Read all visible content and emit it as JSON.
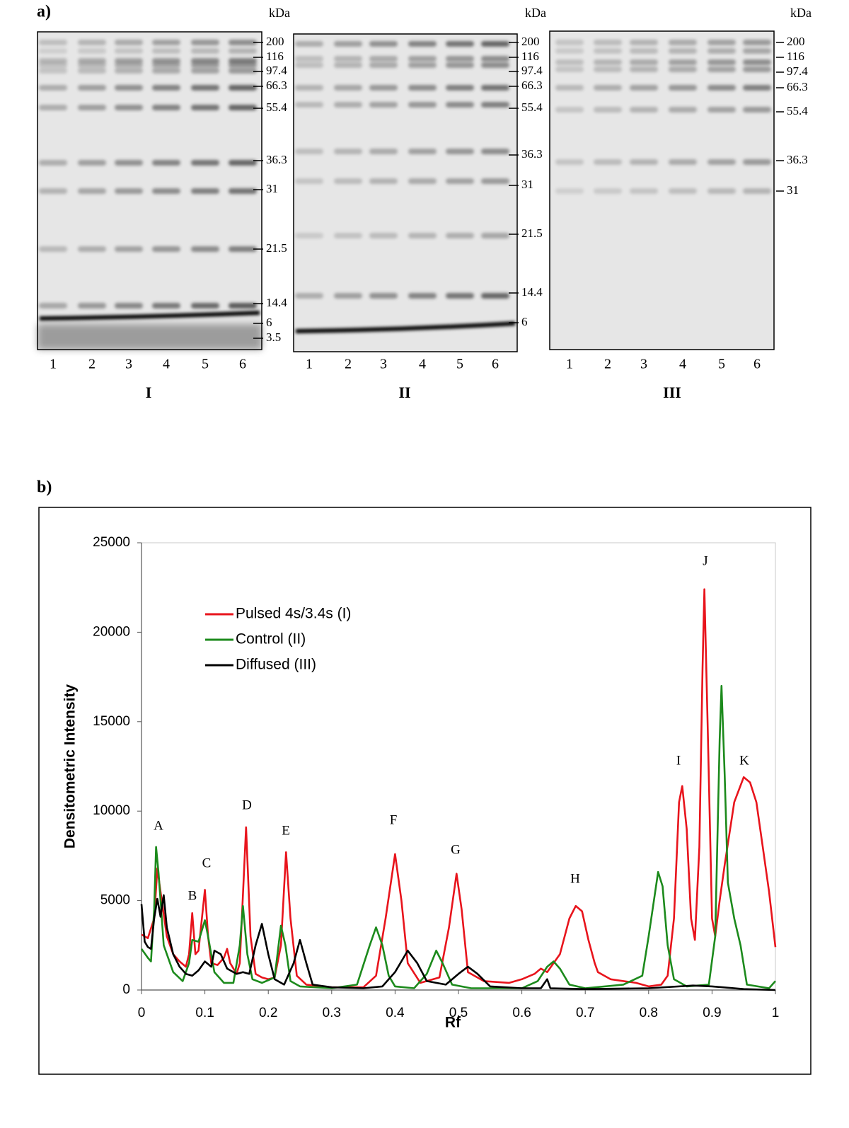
{
  "panel_a": {
    "label": "a)",
    "gels": [
      {
        "name": "I",
        "unit": "kDa",
        "lanes": [
          "1",
          "2",
          "3",
          "4",
          "5",
          "6"
        ],
        "markers": [
          "200",
          "116",
          "97.4",
          "66.3",
          "55.4",
          "36.3",
          "31",
          "21.5",
          "14.4",
          "6",
          "3.5"
        ]
      },
      {
        "name": "II",
        "unit": "kDa",
        "lanes": [
          "1",
          "2",
          "3",
          "4",
          "5",
          "6"
        ],
        "markers": [
          "200",
          "116",
          "97.4",
          "66.3",
          "55.4",
          "36.3",
          "31",
          "21.5",
          "14.4",
          "6"
        ]
      },
      {
        "name": "III",
        "unit": "kDa",
        "lanes": [
          "1",
          "2",
          "3",
          "4",
          "5",
          "6"
        ],
        "markers": [
          "200",
          "116",
          "97.4",
          "66.3",
          "55.4",
          "36.3",
          "31"
        ]
      }
    ]
  },
  "panel_b": {
    "label": "b)"
  },
  "chart_data": {
    "type": "line",
    "x_label": "Rf",
    "y_label": "Densitometric Intensity",
    "xlim": [
      0,
      1
    ],
    "ylim": [
      0,
      25000
    ],
    "xticks": [
      0,
      0.1,
      0.2,
      0.3,
      0.4,
      0.5,
      0.6,
      0.7,
      0.8,
      0.9,
      1
    ],
    "yticks": [
      0,
      5000,
      10000,
      15000,
      20000,
      25000
    ],
    "grid": false,
    "legend": "upper-left",
    "annotations": [
      "A",
      "B",
      "C",
      "D",
      "E",
      "F",
      "G",
      "H",
      "I",
      "J",
      "K"
    ],
    "series": [
      {
        "name": "Pulsed 4s/3.4s (I)",
        "color": "#e8141c",
        "x": [
          0,
          0.01,
          0.02,
          0.025,
          0.03,
          0.04,
          0.05,
          0.06,
          0.07,
          0.075,
          0.08,
          0.085,
          0.09,
          0.1,
          0.105,
          0.11,
          0.12,
          0.13,
          0.135,
          0.14,
          0.15,
          0.155,
          0.165,
          0.172,
          0.18,
          0.19,
          0.2,
          0.21,
          0.22,
          0.228,
          0.235,
          0.245,
          0.26,
          0.3,
          0.35,
          0.37,
          0.385,
          0.4,
          0.41,
          0.42,
          0.44,
          0.47,
          0.485,
          0.497,
          0.505,
          0.515,
          0.54,
          0.58,
          0.6,
          0.62,
          0.63,
          0.64,
          0.66,
          0.675,
          0.685,
          0.695,
          0.705,
          0.715,
          0.72,
          0.74,
          0.78,
          0.8,
          0.82,
          0.83,
          0.84,
          0.848,
          0.853,
          0.86,
          0.867,
          0.873,
          0.88,
          0.885,
          0.888,
          0.893,
          0.9,
          0.905,
          0.912,
          0.92,
          0.935,
          0.95,
          0.96,
          0.97,
          0.98,
          0.99,
          1
        ],
        "values": [
          3100,
          2900,
          4000,
          6800,
          5500,
          3000,
          2000,
          1600,
          1300,
          2000,
          4300,
          2000,
          2200,
          5600,
          3000,
          1500,
          1400,
          1800,
          2300,
          1500,
          900,
          1500,
          9100,
          3000,
          900,
          700,
          600,
          700,
          2500,
          7700,
          4000,
          800,
          300,
          150,
          150,
          800,
          4000,
          7600,
          5000,
          1500,
          400,
          700,
          3500,
          6500,
          4500,
          1000,
          500,
          400,
          600,
          900,
          1200,
          1000,
          2000,
          4000,
          4700,
          4400,
          2800,
          1500,
          1000,
          600,
          400,
          200,
          300,
          800,
          4000,
          10500,
          11400,
          9000,
          4000,
          2800,
          8000,
          18000,
          22400,
          15000,
          4000,
          3000,
          5000,
          7000,
          10500,
          11900,
          11600,
          10500,
          8000,
          5500,
          2400
        ]
      },
      {
        "name": "Control (II)",
        "color": "#1c8a1c",
        "x": [
          0,
          0.01,
          0.015,
          0.02,
          0.023,
          0.027,
          0.035,
          0.05,
          0.065,
          0.075,
          0.08,
          0.09,
          0.1,
          0.105,
          0.115,
          0.13,
          0.145,
          0.155,
          0.16,
          0.167,
          0.175,
          0.19,
          0.21,
          0.22,
          0.227,
          0.235,
          0.25,
          0.3,
          0.34,
          0.36,
          0.37,
          0.38,
          0.39,
          0.4,
          0.43,
          0.45,
          0.465,
          0.475,
          0.49,
          0.52,
          0.6,
          0.625,
          0.64,
          0.65,
          0.66,
          0.675,
          0.7,
          0.76,
          0.79,
          0.8,
          0.815,
          0.822,
          0.83,
          0.84,
          0.86,
          0.895,
          0.905,
          0.912,
          0.915,
          0.92,
          0.925,
          0.935,
          0.945,
          0.955,
          0.99,
          1
        ],
        "values": [
          2300,
          1800,
          1600,
          4500,
          8000,
          6500,
          2500,
          1000,
          500,
          1500,
          2800,
          2700,
          3900,
          3000,
          1000,
          400,
          400,
          2500,
          4700,
          2000,
          600,
          400,
          700,
          3600,
          2500,
          500,
          200,
          100,
          300,
          2500,
          3500,
          2500,
          800,
          200,
          100,
          900,
          2200,
          1500,
          300,
          100,
          100,
          500,
          1300,
          1600,
          1200,
          300,
          100,
          300,
          800,
          3000,
          6600,
          5800,
          2500,
          600,
          200,
          300,
          3000,
          14000,
          17000,
          12000,
          6000,
          4000,
          2500,
          300,
          100,
          500
        ]
      },
      {
        "name": "Diffused (III)",
        "color": "#000000",
        "x": [
          0,
          0.005,
          0.01,
          0.015,
          0.02,
          0.025,
          0.03,
          0.035,
          0.04,
          0.05,
          0.06,
          0.07,
          0.08,
          0.09,
          0.1,
          0.11,
          0.115,
          0.125,
          0.135,
          0.15,
          0.16,
          0.17,
          0.18,
          0.19,
          0.2,
          0.21,
          0.225,
          0.24,
          0.25,
          0.26,
          0.27,
          0.3,
          0.35,
          0.38,
          0.4,
          0.42,
          0.435,
          0.45,
          0.48,
          0.5,
          0.515,
          0.53,
          0.55,
          0.6,
          0.63,
          0.64,
          0.645,
          0.7,
          0.8,
          0.87,
          0.9,
          0.95,
          1
        ],
        "values": [
          4800,
          2700,
          2400,
          2300,
          4000,
          5100,
          4100,
          5300,
          3500,
          2000,
          1300,
          900,
          800,
          1100,
          1600,
          1300,
          2200,
          2000,
          1200,
          900,
          1000,
          900,
          2500,
          3700,
          2000,
          600,
          300,
          1500,
          2800,
          1500,
          300,
          150,
          100,
          200,
          1000,
          2200,
          1500,
          500,
          300,
          900,
          1300,
          900,
          200,
          100,
          100,
          600,
          100,
          50,
          100,
          250,
          200,
          50,
          0
        ]
      }
    ]
  }
}
